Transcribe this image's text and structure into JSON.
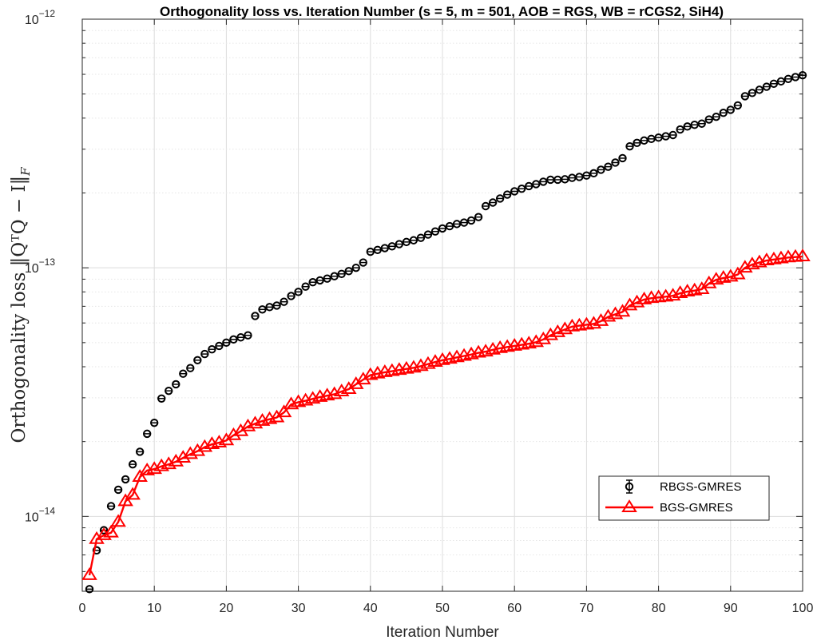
{
  "chart_data": {
    "type": "line",
    "title": "Orthogonality loss vs. Iteration Number (s = 5, m = 501, AOB = RGS, WB = rCGS2, SiH4)",
    "xlabel": "Iteration Number",
    "ylabel": "Orthogonality loss ‖QᵀQ − I‖F",
    "xlim": [
      0,
      100
    ],
    "ylim": [
      5e-15,
      1e-12
    ],
    "yscale": "log",
    "grid": true,
    "legend_position": "bottom-right",
    "x_ticks": [
      "0",
      "10",
      "20",
      "30",
      "40",
      "50",
      "60",
      "70",
      "80",
      "90",
      "100"
    ],
    "y_ticks": [
      {
        "value": 1e-14,
        "base": "10",
        "exp": "−14"
      },
      {
        "value": 1e-13,
        "base": "10",
        "exp": "−13"
      },
      {
        "value": 1e-12,
        "base": "10",
        "exp": "−12"
      }
    ],
    "series": [
      {
        "name": "RBGS-GMRES",
        "color": "#000000",
        "marker": "circle",
        "line": false,
        "x": [
          1,
          2,
          3,
          4,
          5,
          6,
          7,
          8,
          9,
          10,
          11,
          12,
          13,
          14,
          15,
          16,
          17,
          18,
          19,
          20,
          21,
          22,
          23,
          24,
          25,
          26,
          27,
          28,
          29,
          30,
          31,
          32,
          33,
          34,
          35,
          36,
          37,
          38,
          39,
          40,
          41,
          42,
          43,
          44,
          45,
          46,
          47,
          48,
          49,
          50,
          51,
          52,
          53,
          54,
          55,
          56,
          57,
          58,
          59,
          60,
          61,
          62,
          63,
          64,
          65,
          66,
          67,
          68,
          69,
          70,
          71,
          72,
          73,
          74,
          75,
          76,
          77,
          78,
          79,
          80,
          81,
          82,
          83,
          84,
          85,
          86,
          87,
          88,
          89,
          90,
          91,
          92,
          93,
          94,
          95,
          96,
          97,
          98,
          99,
          100
        ],
        "values": [
          5.1e-15,
          7.3e-15,
          8.8e-15,
          1.1e-14,
          1.28e-14,
          1.41e-14,
          1.62e-14,
          1.82e-14,
          2.15e-14,
          2.38e-14,
          2.98e-14,
          3.2e-14,
          3.4e-14,
          3.75e-14,
          3.95e-14,
          4.25e-14,
          4.5e-14,
          4.7e-14,
          4.85e-14,
          5e-14,
          5.15e-14,
          5.25e-14,
          5.35e-14,
          6.4e-14,
          6.8e-14,
          6.95e-14,
          7.05e-14,
          7.3e-14,
          7.7e-14,
          8e-14,
          8.4e-14,
          8.75e-14,
          8.9e-14,
          9.05e-14,
          9.25e-14,
          9.45e-14,
          9.7e-14,
          1e-13,
          1.05e-13,
          1.16e-13,
          1.18e-13,
          1.2e-13,
          1.22e-13,
          1.245e-13,
          1.27e-13,
          1.29e-13,
          1.32e-13,
          1.36e-13,
          1.4e-13,
          1.44e-13,
          1.47e-13,
          1.5e-13,
          1.52e-13,
          1.55e-13,
          1.6e-13,
          1.77e-13,
          1.83e-13,
          1.9e-13,
          1.97e-13,
          2.03e-13,
          2.08e-13,
          2.13e-13,
          2.17e-13,
          2.22e-13,
          2.26e-13,
          2.26e-13,
          2.27e-13,
          2.3e-13,
          2.32e-13,
          2.35e-13,
          2.4e-13,
          2.48e-13,
          2.55e-13,
          2.65e-13,
          2.76e-13,
          3.08e-13,
          3.18e-13,
          3.25e-13,
          3.3e-13,
          3.34e-13,
          3.38e-13,
          3.42e-13,
          3.6e-13,
          3.7e-13,
          3.76e-13,
          3.8e-13,
          3.95e-13,
          4.05e-13,
          4.2e-13,
          4.32e-13,
          4.5e-13,
          4.9e-13,
          5.05e-13,
          5.2e-13,
          5.35e-13,
          5.5e-13,
          5.62e-13,
          5.75e-13,
          5.85e-13,
          5.95e-13
        ]
      },
      {
        "name": "BGS-GMRES",
        "color": "#ff0000",
        "marker": "triangle",
        "line": true,
        "x": [
          1,
          2,
          3,
          4,
          5,
          6,
          7,
          8,
          9,
          10,
          11,
          12,
          13,
          14,
          15,
          16,
          17,
          18,
          19,
          20,
          21,
          22,
          23,
          24,
          25,
          26,
          27,
          28,
          29,
          30,
          31,
          32,
          33,
          34,
          35,
          36,
          37,
          38,
          39,
          40,
          41,
          42,
          43,
          44,
          45,
          46,
          47,
          48,
          49,
          50,
          51,
          52,
          53,
          54,
          55,
          56,
          57,
          58,
          59,
          60,
          61,
          62,
          63,
          64,
          65,
          66,
          67,
          68,
          69,
          70,
          71,
          72,
          73,
          74,
          75,
          76,
          77,
          78,
          79,
          80,
          81,
          82,
          83,
          84,
          85,
          86,
          87,
          88,
          89,
          90,
          91,
          92,
          93,
          94,
          95,
          96,
          97,
          98,
          99,
          100
        ],
        "values": [
          5.8e-15,
          8.1e-15,
          8.4e-15,
          8.6e-15,
          9.5e-15,
          1.15e-14,
          1.22e-14,
          1.44e-14,
          1.53e-14,
          1.55e-14,
          1.59e-14,
          1.62e-14,
          1.66e-14,
          1.72e-14,
          1.78e-14,
          1.83e-14,
          1.9e-14,
          1.95e-14,
          1.98e-14,
          2.02e-14,
          2.12e-14,
          2.2e-14,
          2.3e-14,
          2.36e-14,
          2.42e-14,
          2.46e-14,
          2.5e-14,
          2.62e-14,
          2.82e-14,
          2.88e-14,
          2.92e-14,
          2.97e-14,
          3.02e-14,
          3.06e-14,
          3.1e-14,
          3.18e-14,
          3.25e-14,
          3.4e-14,
          3.55e-14,
          3.7e-14,
          3.75e-14,
          3.8e-14,
          3.84e-14,
          3.88e-14,
          3.92e-14,
          3.96e-14,
          4.02e-14,
          4.1e-14,
          4.18e-14,
          4.25e-14,
          4.3e-14,
          4.36e-14,
          4.42e-14,
          4.48e-14,
          4.55e-14,
          4.6e-14,
          4.68e-14,
          4.75e-14,
          4.8e-14,
          4.85e-14,
          4.9e-14,
          4.95e-14,
          5.02e-14,
          5.15e-14,
          5.35e-14,
          5.5e-14,
          5.65e-14,
          5.8e-14,
          5.85e-14,
          5.9e-14,
          5.95e-14,
          6.1e-14,
          6.35e-14,
          6.5e-14,
          6.65e-14,
          7.05e-14,
          7.25e-14,
          7.45e-14,
          7.55e-14,
          7.6e-14,
          7.65e-14,
          7.72e-14,
          7.9e-14,
          8.02e-14,
          8.1e-14,
          8.2e-14,
          8.65e-14,
          8.95e-14,
          9.1e-14,
          9.2e-14,
          9.4e-14,
          1e-13,
          1.03e-13,
          1.05e-13,
          1.07e-13,
          1.08e-13,
          1.09e-13,
          1.1e-13,
          1.105e-13,
          1.11e-13
        ]
      }
    ]
  }
}
